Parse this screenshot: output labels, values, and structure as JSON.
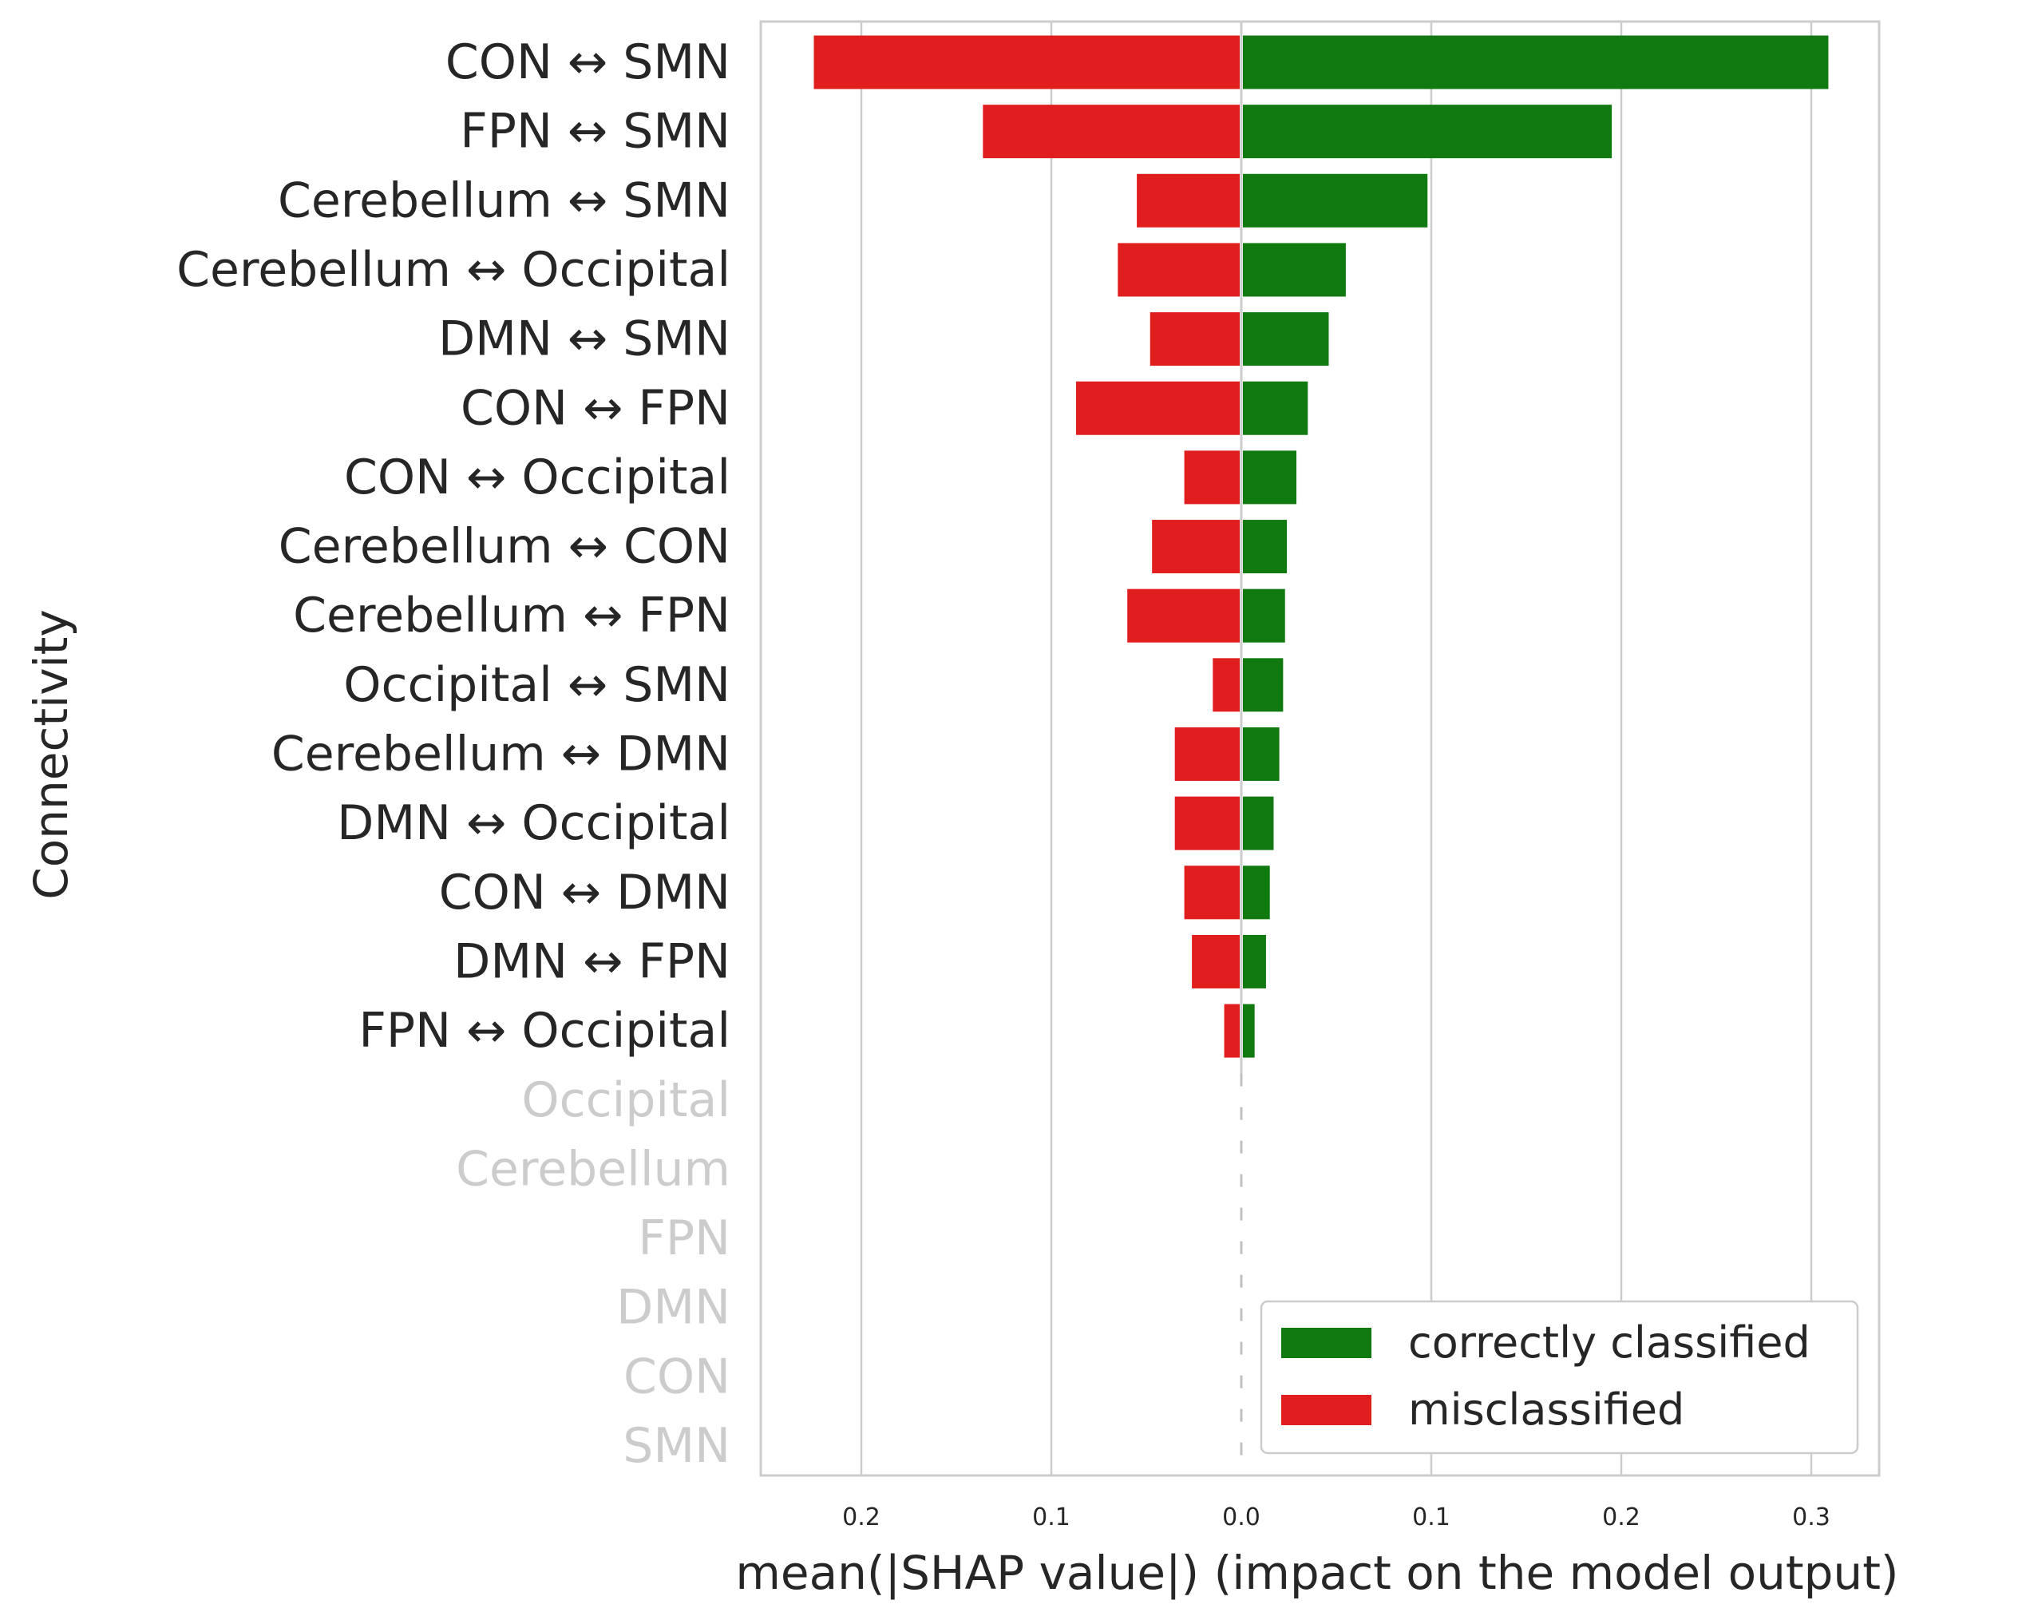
{
  "chart_data": {
    "type": "bar",
    "orientation": "horizontal-diverging",
    "xlabel": "mean(|SHAP value|) (impact on the model output)",
    "ylabel": "Connectivity",
    "x_ticks": [
      {
        "value": -0.2,
        "label": "0.2"
      },
      {
        "value": -0.1,
        "label": "0.1"
      },
      {
        "value": 0.0,
        "label": "0.0"
      },
      {
        "value": 0.1,
        "label": "0.1"
      },
      {
        "value": 0.2,
        "label": "0.2"
      },
      {
        "value": 0.3,
        "label": "0.3"
      }
    ],
    "xlim": [
      -0.252,
      0.337
    ],
    "grid": true,
    "legend_position": "lower-right",
    "categories": [
      "CON ↔ SMN",
      "FPN ↔ SMN",
      "Cerebellum ↔ SMN",
      "Cerebellum ↔ Occipital",
      "DMN ↔ SMN",
      "CON ↔ FPN",
      "CON ↔ Occipital",
      "Cerebellum ↔ CON",
      "Cerebellum ↔ FPN",
      "Occipital ↔ SMN",
      "Cerebellum ↔ DMN",
      "DMN ↔ Occipital",
      "CON ↔ DMN",
      "DMN ↔ FPN",
      "FPN ↔ Occipital",
      "Occipital",
      "Cerebellum",
      "FPN",
      "DMN",
      "CON",
      "SMN"
    ],
    "faded_categories": [
      "Occipital",
      "Cerebellum",
      "FPN",
      "DMN",
      "CON",
      "SMN"
    ],
    "series": [
      {
        "name": "correctly classified",
        "color": "#107a10",
        "values": [
          0.309,
          0.195,
          0.098,
          0.055,
          0.046,
          0.035,
          0.029,
          0.024,
          0.023,
          0.022,
          0.02,
          0.017,
          0.015,
          0.013,
          0.007,
          0,
          0,
          0,
          0,
          0,
          0
        ]
      },
      {
        "name": "misclassified",
        "color": "#e01e1e",
        "values": [
          0.225,
          0.136,
          0.055,
          0.065,
          0.048,
          0.087,
          0.03,
          0.047,
          0.06,
          0.015,
          0.035,
          0.035,
          0.03,
          0.026,
          0.009,
          0,
          0,
          0,
          0,
          0,
          0
        ]
      }
    ]
  },
  "colors": {
    "text": "#262626",
    "faded_text": "#cccccc",
    "grid": "#cccccc",
    "axes_frame": "#cccccc",
    "dashed_zero": "#c0c0c0"
  }
}
